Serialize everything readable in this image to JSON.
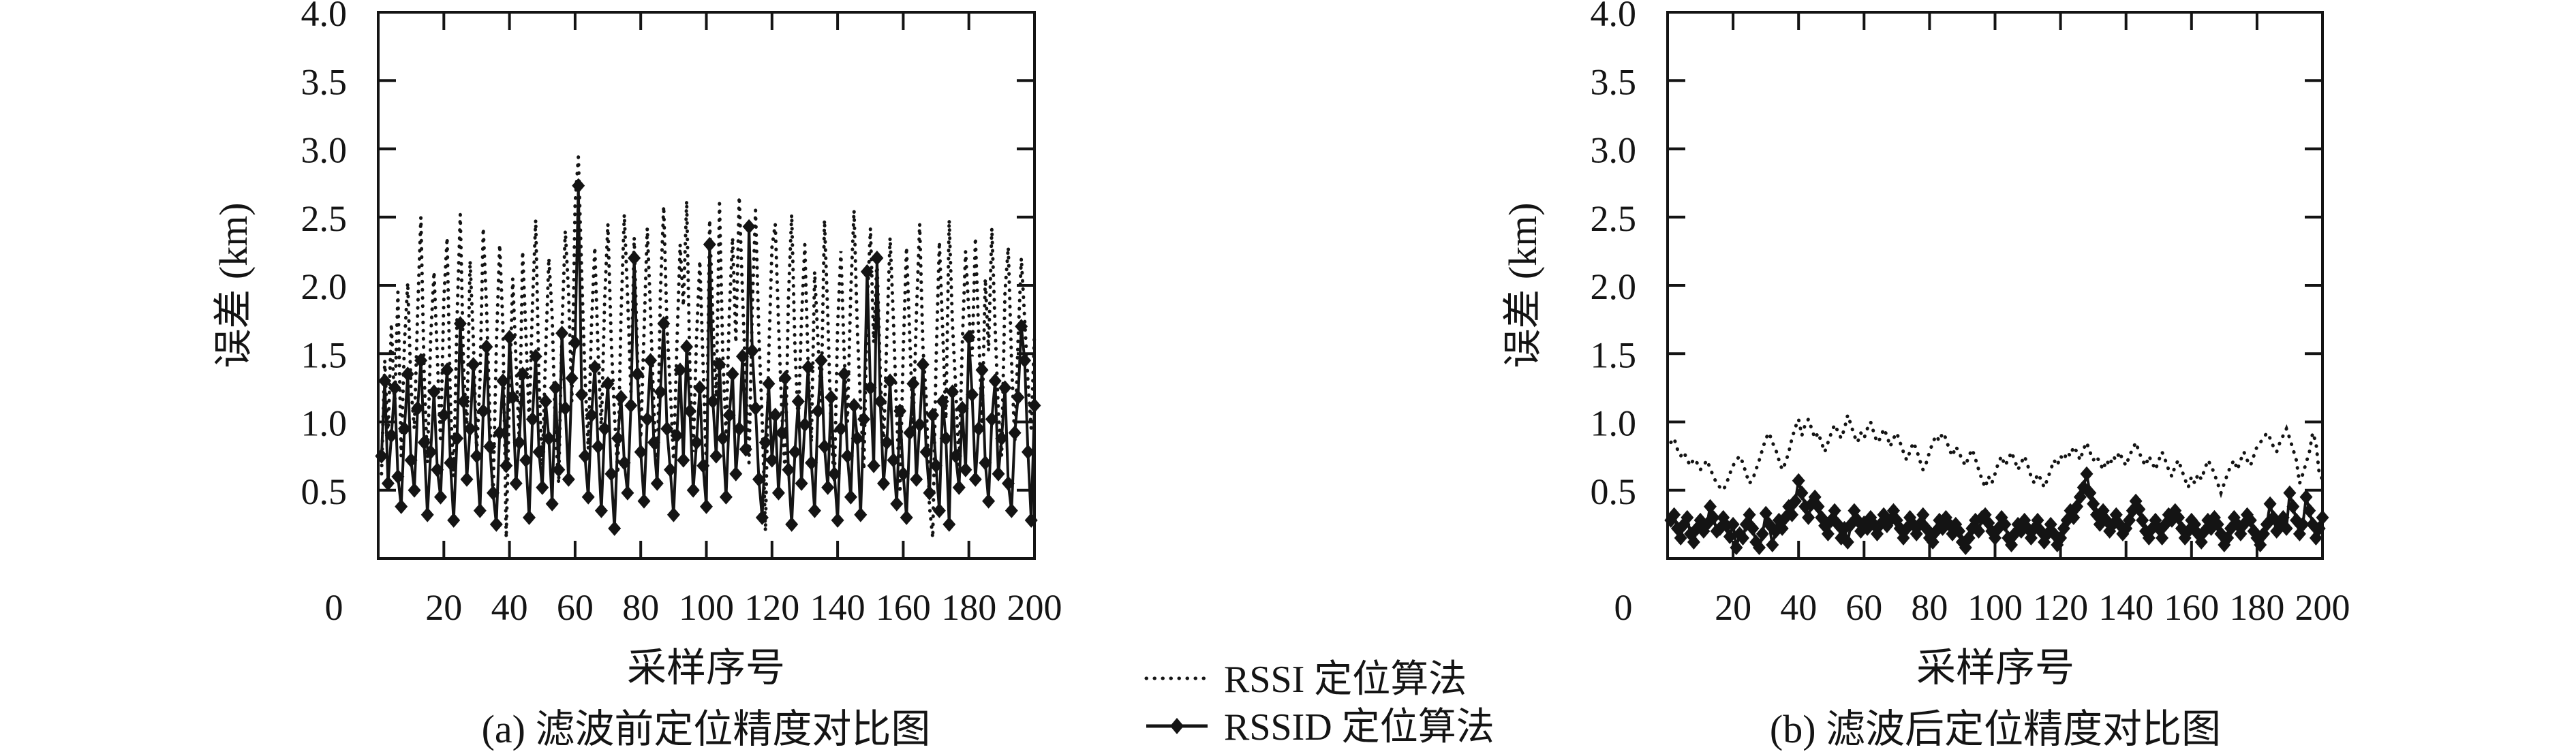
{
  "figure": {
    "background": "#ffffff",
    "ink": "#141414"
  },
  "legend": {
    "items": [
      {
        "label": "RSSI 定位算法",
        "style": "dotted"
      },
      {
        "label": "RSSID 定位算法",
        "style": "solid-marker"
      }
    ]
  },
  "chart_data": [
    {
      "type": "line",
      "title": "(a) 滤波前定位精度对比图",
      "xlabel": "采样序号",
      "ylabel": "误差 (km)",
      "xlim": [
        0,
        200
      ],
      "ylim": [
        0,
        4.0
      ],
      "grid": false,
      "legend_position": "below-center-shared",
      "xticks": [
        0,
        20,
        40,
        60,
        80,
        100,
        120,
        140,
        160,
        180,
        200
      ],
      "yticks": [
        {
          "v": 0.5,
          "label": "0.5"
        },
        {
          "v": 1.0,
          "label": "1.0"
        },
        {
          "v": 1.5,
          "label": "1.5"
        },
        {
          "v": 2.0,
          "label": "2.0"
        },
        {
          "v": 2.5,
          "label": "2.5"
        },
        {
          "v": 3.0,
          "label": "3.0"
        },
        {
          "v": 3.5,
          "label": "3.5"
        },
        {
          "v": 4.0,
          "label": "4.0"
        }
      ],
      "x_start": 1,
      "x_step": 1,
      "series": [
        {
          "name": "RSSI 定位算法",
          "style": "dotted",
          "values": [
            0.62,
            1.45,
            0.88,
            1.72,
            1.1,
            1.95,
            0.75,
            1.58,
            2.02,
            1.25,
            0.95,
            1.8,
            2.5,
            1.35,
            0.7,
            1.62,
            2.1,
            1.48,
            0.85,
            1.9,
            2.35,
            1.15,
            0.6,
            1.75,
            2.52,
            1.4,
            0.95,
            2.18,
            1.6,
            0.78,
            1.3,
            2.42,
            1.85,
            1.05,
            0.45,
            1.55,
            2.3,
            1.7,
            0.15,
            1.2,
            2.05,
            1.45,
            0.85,
            2.25,
            1.65,
            1.0,
            1.85,
            2.48,
            1.3,
            0.68,
            1.5,
            2.2,
            1.78,
            0.92,
            0.55,
            1.68,
            2.4,
            1.95,
            1.15,
            2.6,
            2.94,
            2.1,
            1.35,
            0.8,
            1.72,
            2.28,
            1.52,
            0.95,
            1.88,
            2.45,
            1.6,
            1.05,
            0.62,
            1.78,
            2.52,
            1.92,
            1.22,
            2.35,
            1.48,
            0.88,
            1.65,
            2.42,
            1.8,
            1.1,
            0.58,
            1.95,
            2.58,
            1.7,
            1.25,
            0.72,
            1.55,
            2.3,
            1.85,
            2.62,
            1.38,
            0.78,
            1.62,
            2.18,
            1.42,
            0.65,
            2.48,
            1.75,
            1.15,
            2.6,
            1.5,
            0.9,
            1.8,
            2.35,
            1.58,
            2.65,
            1.95,
            1.28,
            0.7,
            1.85,
            2.55,
            1.65,
            1.02,
            0.2,
            1.48,
            2.28,
            2.45,
            1.72,
            1.08,
            0.62,
            1.9,
            2.52,
            1.55,
            0.98,
            1.75,
            2.3,
            1.42,
            0.85,
            2.1,
            1.6,
            1.15,
            2.48,
            1.78,
            0.92,
            0.55,
            1.7,
            2.25,
            1.5,
            1.0,
            1.95,
            2.55,
            1.68,
            1.12,
            0.65,
            1.85,
            2.42,
            1.58,
            2.2,
            1.35,
            0.82,
            1.62,
            2.35,
            1.75,
            1.05,
            0.48,
            1.52,
            2.28,
            1.62,
            0.95,
            1.78,
            2.45,
            1.55,
            1.18,
            0.38,
            0.15,
            1.42,
            2.32,
            1.68,
            1.02,
            2.48,
            1.72,
            1.25,
            0.68,
            1.58,
            2.25,
            1.8,
            1.48,
            2.35,
            1.65,
            0.98,
            2.05,
            1.52,
            2.42,
            1.7,
            1.08,
            0.75,
            1.95,
            2.28,
            1.45,
            0.85,
            1.6,
            2.2,
            1.75,
            1.3,
            0.95,
            1.65
          ]
        },
        {
          "name": "RSSID 定位算法",
          "style": "solid-marker",
          "values": [
            0.75,
            1.3,
            0.55,
            0.9,
            1.25,
            0.6,
            0.38,
            0.95,
            1.35,
            0.72,
            0.5,
            1.1,
            1.45,
            0.85,
            0.32,
            0.78,
            1.22,
            0.65,
            0.45,
            1.05,
            1.38,
            0.7,
            0.28,
            0.88,
            1.72,
            1.15,
            0.58,
            0.95,
            1.42,
            0.75,
            0.35,
            1.08,
            1.55,
            0.82,
            0.48,
            0.25,
            0.92,
            1.3,
            0.68,
            1.62,
            1.18,
            0.55,
            0.85,
            1.35,
            0.72,
            0.3,
            1.02,
            1.48,
            0.78,
            0.52,
            1.15,
            0.88,
            0.4,
            1.25,
            0.65,
            1.65,
            1.1,
            0.58,
            1.32,
            1.58,
            2.73,
            1.2,
            0.75,
            0.45,
            1.05,
            1.4,
            0.82,
            0.35,
            0.95,
            1.28,
            0.62,
            0.22,
            0.88,
            1.18,
            0.7,
            0.48,
            1.12,
            2.2,
            1.35,
            0.78,
            0.42,
            1.02,
            1.45,
            0.85,
            0.55,
            1.22,
            1.72,
            0.95,
            0.65,
            0.32,
            0.9,
            1.38,
            0.72,
            1.55,
            1.08,
            0.5,
            0.85,
            1.25,
            0.68,
            0.38,
            2.3,
            1.15,
            0.75,
            1.42,
            0.88,
            0.45,
            1.05,
            1.35,
            0.62,
            0.95,
            1.48,
            0.8,
            2.43,
            1.52,
            1.1,
            0.58,
            0.3,
            0.85,
            1.28,
            0.72,
            1.05,
            0.48,
            0.92,
            1.32,
            0.65,
            0.25,
            0.78,
            1.15,
            0.55,
            0.98,
            1.4,
            0.7,
            0.35,
            1.08,
            1.45,
            0.82,
            0.52,
            1.18,
            0.62,
            0.28,
            0.95,
            1.35,
            0.75,
            0.45,
            1.12,
            0.88,
            0.32,
            1.02,
            2.1,
            1.25,
            0.68,
            2.2,
            1.15,
            0.55,
            0.85,
            1.3,
            0.72,
            0.4,
            1.08,
            0.62,
            0.3,
            0.92,
            1.28,
            0.58,
            0.98,
            1.42,
            0.78,
            0.48,
            1.05,
            0.68,
            0.35,
            1.15,
            0.88,
            0.25,
            1.22,
            0.75,
            0.52,
            1.1,
            0.65,
            1.62,
            1.2,
            0.58,
            0.95,
            1.38,
            0.7,
            0.42,
            1.02,
            1.3,
            0.62,
            0.88,
            1.25,
            0.55,
            0.35,
            0.92,
            1.18,
            1.7,
            1.45,
            0.78,
            0.28,
            1.12
          ]
        }
      ]
    },
    {
      "type": "line",
      "title": "(b) 滤波后定位精度对比图",
      "xlabel": "采样序号",
      "ylabel": "误差 (km)",
      "xlim": [
        0,
        200
      ],
      "ylim": [
        0,
        4.0
      ],
      "grid": false,
      "legend_position": "below-center-shared",
      "xticks": [
        0,
        20,
        40,
        60,
        80,
        100,
        120,
        140,
        160,
        180,
        200
      ],
      "yticks": [
        {
          "v": 0.5,
          "label": "0.5"
        },
        {
          "v": 1.0,
          "label": "1.0"
        },
        {
          "v": 1.5,
          "label": "1.5"
        },
        {
          "v": 2.0,
          "label": "2.0"
        },
        {
          "v": 2.5,
          "label": "2.5"
        },
        {
          "v": 3.0,
          "label": "3.0"
        },
        {
          "v": 3.5,
          "label": "3.5"
        },
        {
          "v": 4.0,
          "label": "4.0"
        }
      ],
      "x_start": 1,
      "x_step": 1,
      "series": [
        {
          "name": "RSSI 定位算法",
          "style": "dotted",
          "values": [
            0.85,
            0.88,
            0.8,
            0.75,
            0.78,
            0.72,
            0.68,
            0.73,
            0.7,
            0.65,
            0.68,
            0.72,
            0.66,
            0.6,
            0.55,
            0.52,
            0.5,
            0.55,
            0.62,
            0.68,
            0.72,
            0.75,
            0.7,
            0.62,
            0.55,
            0.58,
            0.65,
            0.72,
            0.8,
            0.88,
            0.92,
            0.85,
            0.8,
            0.72,
            0.65,
            0.7,
            0.78,
            0.88,
            0.96,
            1.02,
            0.9,
            0.98,
            1.02,
            0.95,
            0.88,
            0.92,
            0.85,
            0.78,
            0.85,
            0.92,
            0.98,
            0.93,
            0.88,
            0.95,
            1.05,
            0.98,
            0.9,
            0.85,
            0.92,
            0.88,
            0.95,
            1.0,
            0.92,
            0.85,
            0.88,
            0.95,
            0.9,
            0.82,
            0.88,
            0.92,
            0.85,
            0.78,
            0.72,
            0.78,
            0.85,
            0.8,
            0.72,
            0.65,
            0.7,
            0.78,
            0.85,
            0.9,
            0.86,
            0.92,
            0.88,
            0.8,
            0.75,
            0.82,
            0.78,
            0.72,
            0.68,
            0.75,
            0.8,
            0.73,
            0.65,
            0.58,
            0.52,
            0.6,
            0.55,
            0.62,
            0.7,
            0.75,
            0.68,
            0.72,
            0.78,
            0.72,
            0.65,
            0.7,
            0.75,
            0.68,
            0.6,
            0.55,
            0.62,
            0.58,
            0.52,
            0.58,
            0.65,
            0.72,
            0.68,
            0.75,
            0.72,
            0.78,
            0.75,
            0.82,
            0.78,
            0.72,
            0.8,
            0.85,
            0.78,
            0.72,
            0.75,
            0.7,
            0.65,
            0.72,
            0.68,
            0.75,
            0.72,
            0.78,
            0.72,
            0.68,
            0.75,
            0.8,
            0.85,
            0.78,
            0.72,
            0.68,
            0.75,
            0.7,
            0.65,
            0.72,
            0.78,
            0.72,
            0.65,
            0.6,
            0.68,
            0.72,
            0.65,
            0.58,
            0.52,
            0.6,
            0.55,
            0.62,
            0.58,
            0.65,
            0.72,
            0.68,
            0.62,
            0.55,
            0.48,
            0.55,
            0.62,
            0.68,
            0.72,
            0.65,
            0.72,
            0.78,
            0.72,
            0.68,
            0.75,
            0.82,
            0.85,
            0.88,
            0.92,
            0.88,
            0.82,
            0.78,
            0.85,
            0.9,
            0.95,
            0.88,
            0.8,
            0.72,
            0.55,
            0.62,
            0.7,
            0.78,
            0.92,
            0.85,
            0.62,
            0.58
          ]
        },
        {
          "name": "RSSID 定位算法",
          "style": "solid-marker",
          "values": [
            0.28,
            0.32,
            0.22,
            0.15,
            0.25,
            0.3,
            0.18,
            0.12,
            0.22,
            0.28,
            0.2,
            0.25,
            0.38,
            0.3,
            0.2,
            0.22,
            0.3,
            0.24,
            0.16,
            0.25,
            0.08,
            0.18,
            0.15,
            0.25,
            0.32,
            0.22,
            0.12,
            0.08,
            0.18,
            0.33,
            0.25,
            0.1,
            0.2,
            0.28,
            0.22,
            0.3,
            0.38,
            0.32,
            0.42,
            0.57,
            0.48,
            0.38,
            0.3,
            0.4,
            0.45,
            0.38,
            0.3,
            0.24,
            0.18,
            0.28,
            0.35,
            0.25,
            0.15,
            0.22,
            0.12,
            0.25,
            0.35,
            0.28,
            0.2,
            0.26,
            0.22,
            0.3,
            0.25,
            0.18,
            0.25,
            0.32,
            0.24,
            0.28,
            0.35,
            0.28,
            0.22,
            0.15,
            0.22,
            0.3,
            0.25,
            0.18,
            0.25,
            0.32,
            0.22,
            0.15,
            0.12,
            0.2,
            0.28,
            0.22,
            0.3,
            0.25,
            0.18,
            0.25,
            0.2,
            0.12,
            0.08,
            0.15,
            0.22,
            0.28,
            0.2,
            0.3,
            0.32,
            0.26,
            0.2,
            0.15,
            0.22,
            0.3,
            0.25,
            0.15,
            0.1,
            0.18,
            0.25,
            0.2,
            0.28,
            0.22,
            0.15,
            0.22,
            0.28,
            0.2,
            0.12,
            0.18,
            0.25,
            0.18,
            0.1,
            0.15,
            0.22,
            0.28,
            0.35,
            0.3,
            0.38,
            0.45,
            0.52,
            0.62,
            0.48,
            0.4,
            0.32,
            0.25,
            0.35,
            0.28,
            0.2,
            0.25,
            0.32,
            0.25,
            0.18,
            0.22,
            0.28,
            0.35,
            0.42,
            0.36,
            0.28,
            0.2,
            0.15,
            0.22,
            0.28,
            0.22,
            0.15,
            0.25,
            0.32,
            0.28,
            0.35,
            0.3,
            0.22,
            0.15,
            0.2,
            0.28,
            0.25,
            0.18,
            0.12,
            0.2,
            0.28,
            0.22,
            0.3,
            0.25,
            0.18,
            0.1,
            0.15,
            0.22,
            0.3,
            0.25,
            0.18,
            0.25,
            0.32,
            0.28,
            0.2,
            0.15,
            0.1,
            0.18,
            0.25,
            0.4,
            0.3,
            0.2,
            0.25,
            0.3,
            0.22,
            0.48,
            0.38,
            0.28,
            0.18,
            0.25,
            0.45,
            0.35,
            0.25,
            0.15,
            0.22,
            0.3
          ]
        }
      ]
    }
  ]
}
